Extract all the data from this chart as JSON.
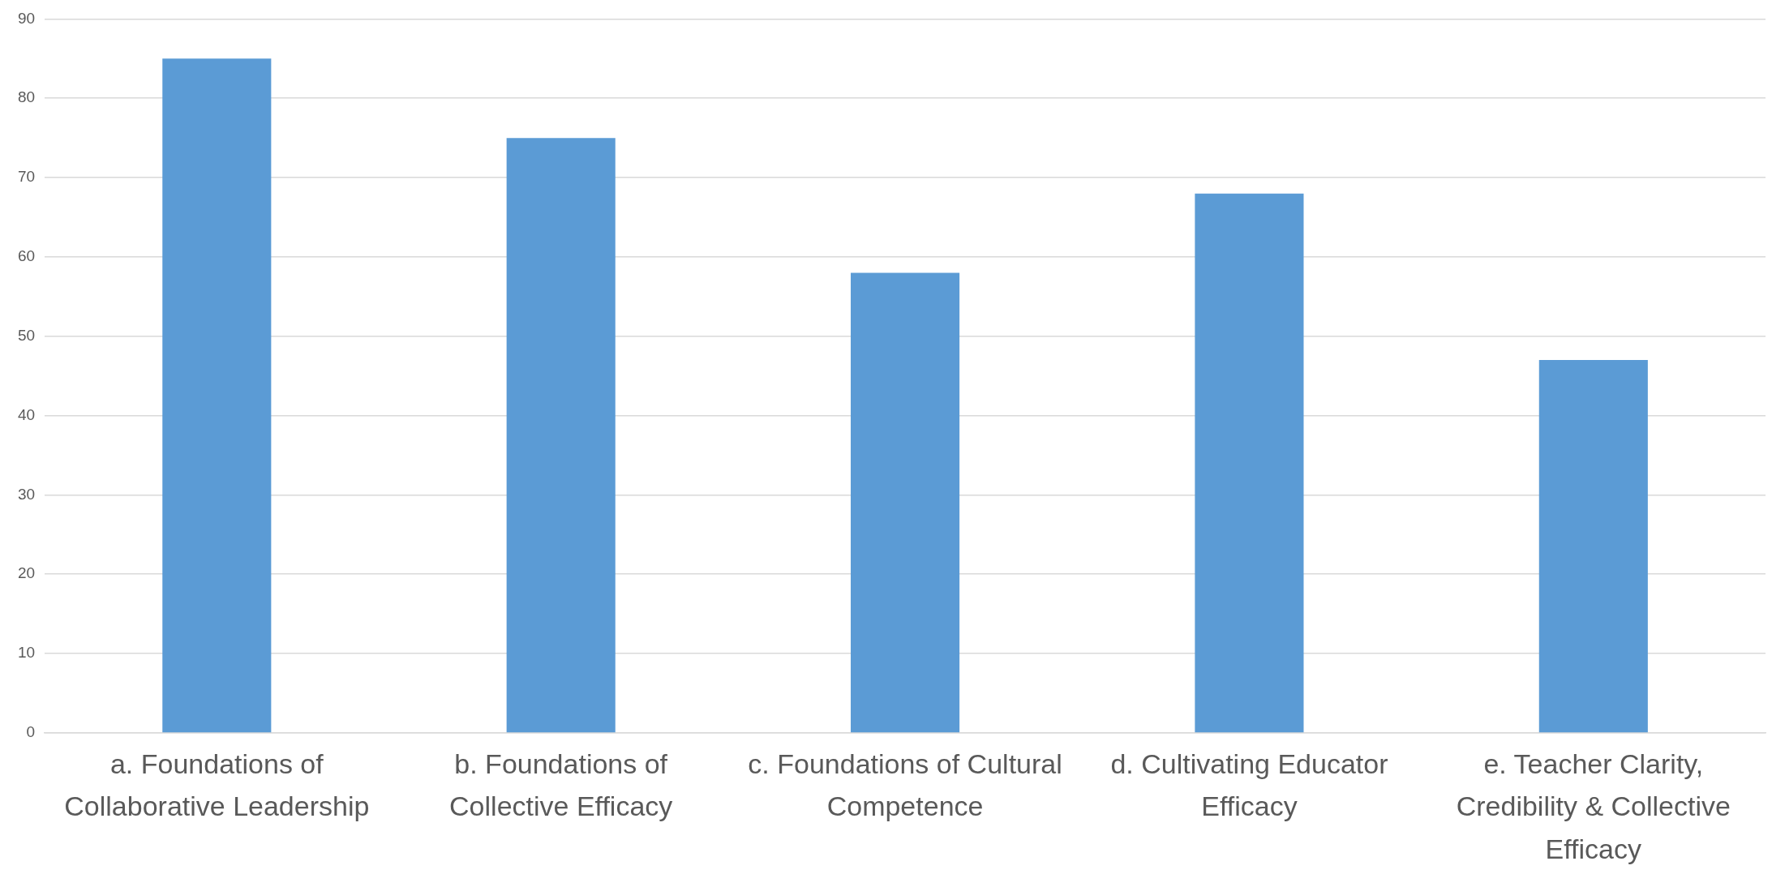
{
  "chart_data": {
    "type": "bar",
    "categories": [
      "a. Foundations of Collaborative Leadership",
      "b. Foundations of Collective Efficacy",
      "c. Foundations of Cultural Competence",
      "d. Cultivating Educator Efficacy",
      "e. Teacher Clarity, Credibility & Collective Efficacy"
    ],
    "values": [
      85,
      75,
      58,
      68,
      47
    ],
    "color": "#5b9bd5",
    "ylim": [
      0,
      90
    ],
    "yticks": [
      0,
      10,
      20,
      30,
      40,
      50,
      60,
      70,
      80,
      90
    ],
    "grid": "y",
    "legend": false
  }
}
